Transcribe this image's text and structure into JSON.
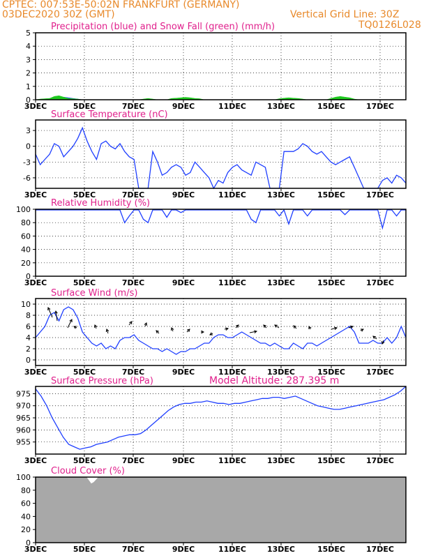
{
  "header": {
    "line1": "CPTEC:   007:53E-50:02N   FRANKFURT (GERMANY)",
    "line2_left": "03DEC2020 30Z (GMT)",
    "line2_right": "Vertical Grid Line: 30Z",
    "line3_right": "TQ0126L028",
    "model_altitude": "Model Altitude: 287.395 m"
  },
  "colors": {
    "header": "#e8892a",
    "titles": "#e0208c",
    "series": "#1f3fff",
    "snow": "#1ec81e",
    "cloud": "#a8a8a8"
  },
  "chart_data": [
    {
      "type": "area",
      "title": "Precipitation (blue) and Snow Fall (green) (mm/h)",
      "x_labels": [
        "3DEC",
        "5DEC",
        "7DEC",
        "9DEC",
        "11DEC",
        "13DEC",
        "15DEC",
        "17DEC"
      ],
      "ylim": [
        0,
        5
      ],
      "yticks": [
        0,
        1,
        2,
        3,
        4,
        5
      ],
      "grid": true,
      "series": [
        {
          "name": "Precipitation",
          "color": "#1f3fff",
          "values": [
            0,
            0,
            0.05,
            0.1,
            0.1,
            0.15,
            0.2,
            0.15,
            0.1,
            0.05,
            0,
            0,
            0,
            0,
            0,
            0,
            0,
            0,
            0,
            0,
            0,
            0,
            0,
            0,
            0,
            0,
            0,
            0,
            0,
            0,
            0,
            0,
            0,
            0,
            0,
            0,
            0,
            0,
            0,
            0,
            0,
            0,
            0,
            0,
            0,
            0,
            0,
            0,
            0,
            0,
            0,
            0,
            0,
            0,
            0,
            0,
            0,
            0,
            0,
            0,
            0,
            0,
            0,
            0,
            0,
            0,
            0,
            0,
            0,
            0,
            0,
            0,
            0,
            0,
            0,
            0,
            0,
            0,
            0,
            0
          ]
        },
        {
          "name": "Snow Fall",
          "color": "#1ec81e",
          "values": [
            0,
            0.05,
            0.08,
            0.1,
            0.25,
            0.3,
            0.2,
            0.1,
            0.08,
            0.05,
            0,
            0,
            0,
            0,
            0,
            0,
            0,
            0,
            0,
            0,
            0,
            0,
            0,
            0.05,
            0.1,
            0.05,
            0,
            0,
            0,
            0.1,
            0.12,
            0.15,
            0.18,
            0.15,
            0.1,
            0.08,
            0,
            0,
            0,
            0,
            0,
            0,
            0,
            0,
            0,
            0,
            0,
            0,
            0,
            0,
            0,
            0,
            0.08,
            0.12,
            0.15,
            0.12,
            0.1,
            0.05,
            0,
            0,
            0,
            0,
            0,
            0.1,
            0.2,
            0.25,
            0.2,
            0.15,
            0.05,
            0,
            0,
            0,
            0,
            0,
            0,
            0,
            0,
            0,
            0,
            0
          ]
        }
      ]
    },
    {
      "type": "line",
      "title": "Surface Temperature (nC)",
      "x_labels": [
        "3DEC",
        "5DEC",
        "7DEC",
        "9DEC",
        "11DEC",
        "13DEC",
        "15DEC",
        "17DEC"
      ],
      "ylim": [
        -8,
        5
      ],
      "yticks": [
        -6,
        -3,
        0,
        3
      ],
      "grid": true,
      "series": [
        {
          "name": "",
          "color": "#1f3fff",
          "values": [
            -1.5,
            -3.5,
            -2.5,
            -1.5,
            0.5,
            0,
            -2,
            -1,
            0,
            1.5,
            3.5,
            1,
            -1,
            -2.5,
            0.5,
            1,
            0,
            -0.5,
            0.5,
            -1,
            -2,
            -2.5,
            -8,
            -8,
            -8,
            -1,
            -3,
            -5.5,
            -5,
            -4,
            -3.5,
            -4,
            -5.5,
            -5,
            -3,
            -4,
            -5,
            -6,
            -8,
            -6.5,
            -7,
            -5,
            -4,
            -3.5,
            -4.5,
            -5,
            -5.5,
            -3,
            -3.5,
            -4,
            -8,
            -8,
            -8,
            -1,
            -1,
            -1,
            -0.5,
            0.5,
            0,
            -1,
            -1.5,
            -1,
            -2,
            -3,
            -3.5,
            -3,
            -2.5,
            -2,
            -4,
            -6,
            -8,
            -8,
            -8,
            -8,
            -6.5,
            -6,
            -7,
            -5.5,
            -6,
            -7
          ]
        }
      ]
    },
    {
      "type": "line",
      "title": "Relative Humidity (%)",
      "x_labels": [
        "3DEC",
        "5DEC",
        "7DEC",
        "9DEC",
        "11DEC",
        "13DEC",
        "15DEC",
        "17DEC"
      ],
      "ylim": [
        0,
        100
      ],
      "yticks": [
        0,
        20,
        40,
        60,
        80,
        100
      ],
      "grid": true,
      "series": [
        {
          "name": "",
          "color": "#1f3fff",
          "values": [
            99,
            99,
            99,
            99,
            99,
            99,
            99,
            99,
            99,
            99,
            99,
            99,
            99,
            99,
            99,
            99,
            99,
            99,
            99,
            80,
            90,
            99,
            99,
            85,
            80,
            99,
            99,
            99,
            88,
            99,
            99,
            95,
            99,
            99,
            99,
            99,
            99,
            99,
            99,
            99,
            99,
            99,
            99,
            99,
            99,
            99,
            85,
            80,
            99,
            99,
            99,
            99,
            90,
            99,
            78,
            99,
            99,
            99,
            90,
            99,
            99,
            99,
            99,
            99,
            99,
            99,
            92,
            99,
            99,
            99,
            99,
            99,
            99,
            99,
            72,
            99,
            99,
            90,
            99,
            99
          ]
        }
      ]
    },
    {
      "type": "line",
      "title": "Surface Wind (m/s)",
      "x_labels": [
        "3DEC",
        "5DEC",
        "7DEC",
        "9DEC",
        "11DEC",
        "13DEC",
        "15DEC",
        "17DEC"
      ],
      "ylim": [
        -1,
        11
      ],
      "yticks": [
        0,
        2,
        4,
        6,
        8,
        10
      ],
      "grid": true,
      "series": [
        {
          "name": "",
          "color": "#1f3fff",
          "values": [
            4,
            5,
            6,
            8,
            8.5,
            7,
            9,
            9.5,
            9,
            7.5,
            5,
            4,
            3,
            2.5,
            3,
            2,
            2.5,
            2,
            3.5,
            4,
            4,
            4.5,
            3.5,
            3,
            2.5,
            2,
            2,
            1.5,
            2,
            1.5,
            1,
            1.5,
            1.5,
            2,
            2,
            2.5,
            3,
            3,
            4,
            4.5,
            4.5,
            4,
            4,
            4.5,
            5,
            4.5,
            4,
            3.5,
            3,
            3,
            2.5,
            3,
            2.5,
            2,
            2,
            3,
            2.5,
            2,
            3,
            3,
            2.5,
            3,
            3.5,
            4,
            4.5,
            5,
            5.5,
            6,
            5,
            3,
            3,
            3,
            3.5,
            3,
            3,
            4,
            3,
            4,
            6,
            4
          ]
        }
      ]
    },
    {
      "type": "line",
      "title": "Surface Pressure (hPa)",
      "x_labels": [
        "3DEC",
        "5DEC",
        "7DEC",
        "9DEC",
        "11DEC",
        "13DEC",
        "15DEC",
        "17DEC"
      ],
      "ylim": [
        950,
        978
      ],
      "yticks": [
        955,
        960,
        965,
        970,
        975
      ],
      "grid": true,
      "series": [
        {
          "name": "",
          "color": "#1f3fff",
          "values": [
            977,
            974,
            970,
            965,
            961,
            957,
            954,
            953,
            952,
            952.5,
            953,
            954,
            954.5,
            955,
            956,
            957,
            957.5,
            958,
            958,
            958.5,
            960,
            962,
            964,
            966,
            968,
            969.5,
            970.5,
            971,
            971,
            971.5,
            971.5,
            972,
            971.5,
            971,
            971,
            970.5,
            971,
            971,
            971.5,
            972,
            972.5,
            973,
            973,
            973.5,
            973.5,
            973,
            973.5,
            974,
            973,
            972,
            971,
            970,
            969.5,
            969,
            968.5,
            968.5,
            969,
            969.5,
            970,
            970.5,
            971,
            971.5,
            972,
            972.5,
            973.5,
            974.5,
            976,
            978
          ]
        }
      ]
    },
    {
      "type": "area",
      "title": "Cloud Cover (%)",
      "x_labels": [
        "3DEC",
        "5DEC",
        "7DEC",
        "9DEC",
        "11DEC",
        "13DEC",
        "15DEC",
        "17DEC"
      ],
      "ylim": [
        0,
        100
      ],
      "yticks": [
        0,
        20,
        40,
        60,
        80,
        100
      ],
      "grid": true,
      "series": [
        {
          "name": "",
          "color": "#a8a8a8",
          "values": [
            100,
            100,
            100,
            100,
            100,
            100,
            100,
            100,
            100,
            100,
            100,
            100,
            100,
            100,
            100,
            100,
            100,
            100,
            100,
            100,
            100,
            100,
            95,
            90,
            92,
            96,
            100,
            100,
            100,
            100,
            100,
            100,
            100,
            100,
            100,
            100,
            100,
            100,
            100,
            100,
            100,
            100,
            100,
            100,
            100,
            100,
            100,
            100,
            100,
            100,
            100,
            100,
            100,
            100,
            100,
            100,
            100,
            100,
            100,
            100,
            100,
            100,
            100,
            100,
            100,
            100,
            100,
            100,
            100,
            100,
            100,
            100,
            100,
            100,
            100,
            100,
            100,
            100,
            100,
            100,
            100,
            100,
            100,
            100,
            100,
            100,
            100,
            100,
            100,
            100,
            100,
            100,
            100,
            100,
            100,
            100,
            100,
            100,
            100,
            100,
            100,
            100,
            100,
            100,
            100,
            100,
            100,
            100,
            100,
            100,
            100,
            100,
            100,
            100,
            100,
            100,
            100,
            100,
            100,
            100,
            100,
            100,
            100,
            100,
            100,
            100,
            100,
            100,
            100,
            100,
            100,
            100,
            100,
            100,
            100,
            100,
            100,
            100,
            100,
            100,
            100,
            100,
            100,
            100,
            100,
            100,
            100,
            100,
            100,
            100,
            100,
            100,
            100,
            100
          ]
        }
      ]
    }
  ],
  "panel_titles": [
    "Precipitation (blue) and Snow Fall (green) (mm/h)",
    "Surface Temperature (nC)",
    "Relative Humidity (%)",
    "Surface Wind (m/s)",
    "Surface Pressure (hPa)",
    "Cloud Cover (%)"
  ]
}
